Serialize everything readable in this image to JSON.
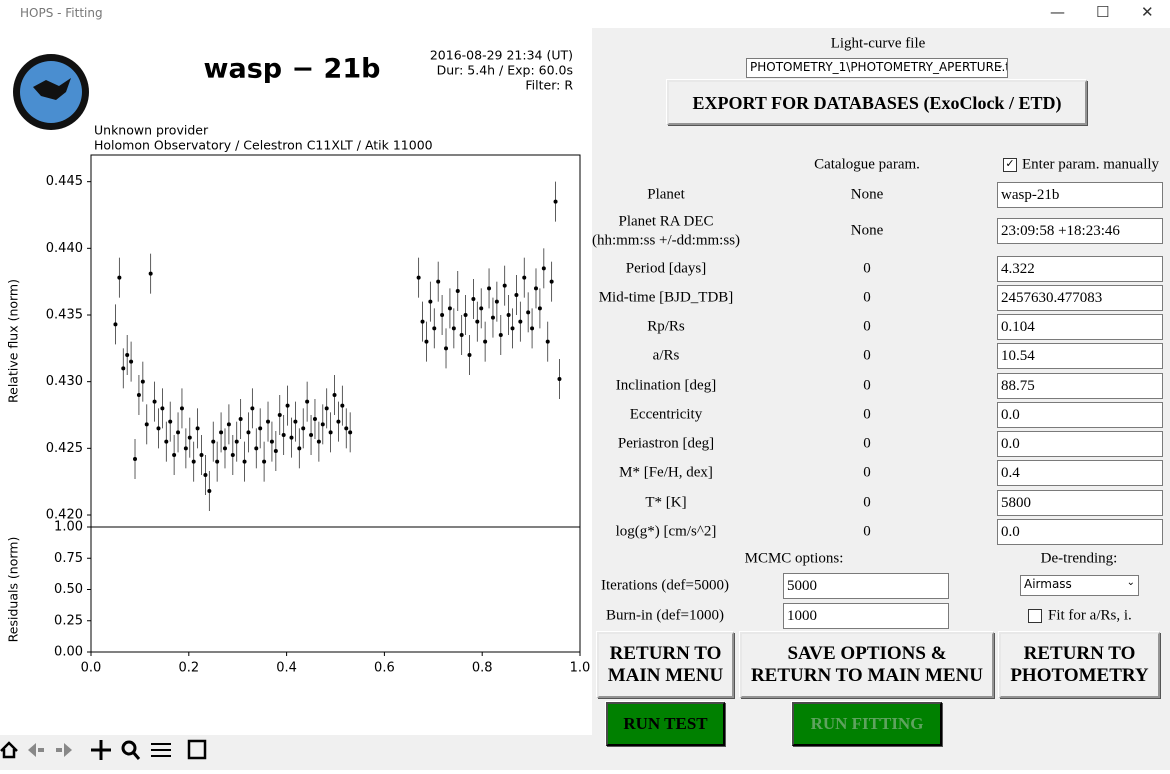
{
  "window": {
    "title": "HOPS - Fitting"
  },
  "chart_data": [
    {
      "type": "scatter",
      "title": "wasp − 21b",
      "info": [
        "2016-08-29 21:34 (UT)",
        "Dur: 5.4h / Exp: 60.0s",
        "Filter: R"
      ],
      "subtitle": [
        "Unknown provider",
        "Holomon Observatory / Celestron C11XLT / Atik 11000"
      ],
      "y_label": "Relative flux (norm)",
      "xlim": [
        0,
        1
      ],
      "ylim": [
        0.4191,
        0.447
      ],
      "yticks": [
        {
          "value": 0.42,
          "label": "0.420"
        },
        0.425,
        {
          "value": 0.43,
          "label": "0.430"
        },
        0.435,
        {
          "value": 0.44,
          "label": "0.440"
        },
        0.445
      ],
      "error": 0.0015,
      "series": [
        {
          "color": "#000000",
          "x": [
            0.05,
            0.058,
            0.066,
            0.074,
            0.082,
            0.09,
            0.098,
            0.106,
            0.114,
            0.122,
            0.13,
            0.138,
            0.146,
            0.154,
            0.162,
            0.17,
            0.178,
            0.186,
            0.194,
            0.202,
            0.21,
            0.218,
            0.226,
            0.234,
            0.242,
            0.25,
            0.258,
            0.266,
            0.274,
            0.282,
            0.29,
            0.298,
            0.306,
            0.314,
            0.322,
            0.33,
            0.338,
            0.346,
            0.354,
            0.362,
            0.37,
            0.378,
            0.386,
            0.394,
            0.402,
            0.41,
            0.418,
            0.426,
            0.434,
            0.442,
            0.45,
            0.458,
            0.466,
            0.474,
            0.482,
            0.49,
            0.498,
            0.506,
            0.514,
            0.522,
            0.53,
            0.67,
            0.678,
            0.686,
            0.694,
            0.702,
            0.71,
            0.718,
            0.726,
            0.734,
            0.742,
            0.75,
            0.758,
            0.766,
            0.774,
            0.782,
            0.79,
            0.798,
            0.806,
            0.814,
            0.822,
            0.83,
            0.838,
            0.846,
            0.854,
            0.862,
            0.87,
            0.878,
            0.886,
            0.894,
            0.902,
            0.91,
            0.918,
            0.926,
            0.934,
            0.942,
            0.95,
            0.958
          ],
          "y": [
            0.4343,
            0.4378,
            0.431,
            0.432,
            0.4315,
            0.4242,
            0.429,
            0.43,
            0.4268,
            0.4381,
            0.4285,
            0.4265,
            0.428,
            0.4255,
            0.427,
            0.4245,
            0.4262,
            0.428,
            0.425,
            0.4258,
            0.424,
            0.4265,
            0.4245,
            0.423,
            0.4218,
            0.4255,
            0.424,
            0.4262,
            0.425,
            0.4268,
            0.4245,
            0.4255,
            0.4272,
            0.424,
            0.4262,
            0.428,
            0.425,
            0.4265,
            0.424,
            0.427,
            0.4255,
            0.4248,
            0.4275,
            0.426,
            0.4282,
            0.4258,
            0.427,
            0.425,
            0.4265,
            0.4285,
            0.426,
            0.4272,
            0.4255,
            0.4268,
            0.428,
            0.4262,
            0.429,
            0.427,
            0.4282,
            0.4265,
            0.4262,
            0.4378,
            0.4345,
            0.433,
            0.436,
            0.434,
            0.4375,
            0.435,
            0.4325,
            0.4355,
            0.434,
            0.4368,
            0.4335,
            0.435,
            0.432,
            0.4362,
            0.4345,
            0.4355,
            0.433,
            0.437,
            0.4348,
            0.436,
            0.4335,
            0.4372,
            0.435,
            0.434,
            0.4365,
            0.4345,
            0.4378,
            0.4352,
            0.434,
            0.437,
            0.4355,
            0.4385,
            0.433,
            0.4375,
            0.4435,
            0.4302
          ]
        }
      ]
    },
    {
      "type": "scatter",
      "y_label": "Residuals (norm)",
      "xlim": [
        0,
        1
      ],
      "ylim": [
        0,
        1
      ],
      "xticks": [
        {
          "value": 0,
          "label": "0.0"
        },
        0.2,
        0.4,
        0.6,
        0.8,
        {
          "value": 1,
          "label": "1.0"
        }
      ],
      "yticks": [
        {
          "value": 0,
          "label": "0.00"
        },
        0.25,
        {
          "value": 0.5,
          "label": "0.50"
        },
        0.75,
        {
          "value": 1,
          "label": "1.00"
        }
      ],
      "series": [
        {
          "color": "#000000",
          "x": [],
          "y": []
        }
      ]
    }
  ],
  "form": {
    "light_curve_file": {
      "label": "Light-curve file",
      "value": "PHOTOMETRY_1\\PHOTOMETRY_APERTURE.t"
    },
    "export_button": "EXPORT FOR DATABASES (ExoClock / ETD)",
    "catalogue_header": "Catalogue param.",
    "manual_checkbox": {
      "label": "Enter param. manually",
      "checked": true
    },
    "params": [
      {
        "label": "Planet",
        "catalogue": "None",
        "value": "wasp-21b"
      },
      {
        "label": "Planet RA DEC",
        "sublabel": "(hh:mm:ss +/-dd:mm:ss)",
        "catalogue": "None",
        "value": "23:09:58 +18:23:46"
      },
      {
        "label": "Period [days]",
        "catalogue": "0",
        "value": "4.322"
      },
      {
        "label": "Mid-time [BJD_TDB]",
        "catalogue": "0",
        "value": "2457630.477083"
      },
      {
        "label": "Rp/Rs",
        "catalogue": "0",
        "value": "0.104"
      },
      {
        "label": "a/Rs",
        "catalogue": "0",
        "value": "10.54"
      },
      {
        "label": "Inclination [deg]",
        "catalogue": "0",
        "value": "88.75"
      },
      {
        "label": "Eccentricity",
        "catalogue": "0",
        "value": "0.0"
      },
      {
        "label": "Periastron [deg]",
        "catalogue": "0",
        "value": "0.0"
      },
      {
        "label": "M* [Fe/H, dex]",
        "catalogue": "0",
        "value": "0.4"
      },
      {
        "label": "T* [K]",
        "catalogue": "0",
        "value": "5800"
      },
      {
        "label": "log(g*) [cm/s^2]",
        "catalogue": "0",
        "value": "0.0"
      }
    ],
    "mcmc": {
      "title": "MCMC options:",
      "iterations": {
        "label": "Iterations (def=5000)",
        "value": "5000"
      },
      "burn_in": {
        "label": "Burn-in (def=1000)",
        "value": "1000"
      }
    },
    "detrending": {
      "title": "De-trending:",
      "value": "Airmass",
      "fit_checkbox": {
        "label": "Fit for a/Rs, i.",
        "checked": false
      }
    },
    "buttons": {
      "return_main": [
        "RETURN TO",
        "MAIN MENU"
      ],
      "save": [
        "SAVE OPTIONS &",
        "RETURN TO MAIN MENU"
      ],
      "return_phot": [
        "RETURN TO",
        "PHOTOMETRY"
      ],
      "run_test": "RUN TEST",
      "run_fitting": "RUN FITTING"
    }
  }
}
